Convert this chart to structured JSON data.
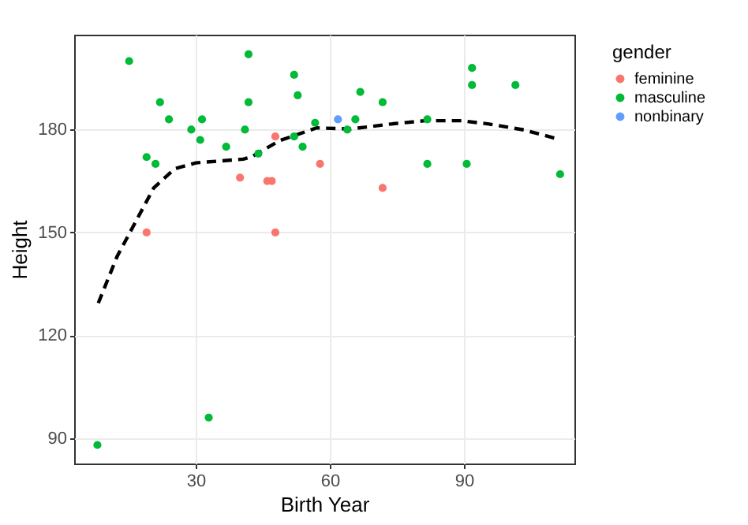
{
  "chart_data": {
    "type": "scatter",
    "xlabel": "Birth Year",
    "ylabel": "Height",
    "legend_title": "gender",
    "legend": "right",
    "grid": true,
    "xlim": [
      2.8,
      114.7
    ],
    "xticks": [
      30,
      60,
      90
    ],
    "ylim": [
      82.6,
      207.7
    ],
    "yticks": [
      90,
      120,
      150,
      180
    ],
    "series": [
      {
        "name": "feminine",
        "color": "#f8766d",
        "x": [
          47.8,
          57.8,
          39.9,
          46,
          47,
          19,
          47.8,
          71.8
        ],
        "values": [
          178,
          170,
          166,
          165,
          165,
          150,
          150,
          163
        ]
      },
      {
        "name": "masculine",
        "color": "#00ba38",
        "x": [
          15.1,
          41.8,
          52,
          52.8,
          22,
          41.8,
          24,
          31.4,
          29,
          41,
          31,
          36.8,
          56.7,
          52,
          53.9,
          44,
          19,
          21,
          66.8,
          71.8,
          65.7,
          63.9,
          81.8,
          91.8,
          91.8,
          101.5,
          81.8,
          90.6,
          111.5,
          8,
          32.9
        ],
        "values": [
          200,
          202,
          196,
          190,
          188,
          188,
          183,
          183,
          180,
          180,
          177,
          175,
          182,
          178,
          175,
          173,
          172,
          170,
          191,
          188,
          183,
          180,
          183,
          198,
          193,
          193,
          170,
          170,
          167,
          88,
          96
        ]
      },
      {
        "name": "nonbinary",
        "color": "#619cff",
        "x": [
          61.8
        ],
        "values": [
          183
        ]
      },
      {
        "type": "line",
        "color": "#000000",
        "line_style": "dashed",
        "x": [
          8.2,
          12.4,
          20.6,
          25.3,
          30,
          40.6,
          42.4,
          48.8,
          57,
          64.7,
          74.1,
          81.2,
          89.4,
          95.3,
          103.5,
          111.2
        ],
        "values": [
          129.4,
          143,
          163,
          168.6,
          170.3,
          171.4,
          172,
          176.8,
          180.5,
          180.2,
          181.7,
          182.6,
          182.6,
          181.7,
          179.9,
          177.2
        ]
      }
    ]
  }
}
